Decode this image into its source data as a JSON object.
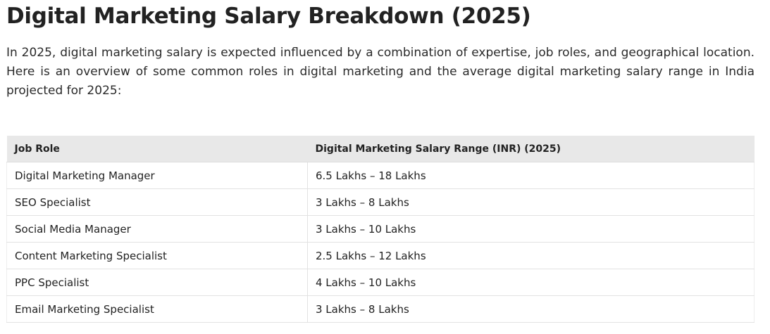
{
  "article": {
    "title": "Digital Marketing Salary Breakdown (2025)",
    "intro": "In 2025, digital marketing salary is expected influenced by a combination of expertise, job roles, and geographical location. Here is an overview of some common roles in digital marketing and the average digital marketing salary range in India projected for 2025:"
  },
  "table": {
    "headers": {
      "role": "Job Role",
      "range": "Digital Marketing Salary Range (INR) (2025)"
    },
    "rows": [
      {
        "role": "Digital Marketing Manager",
        "range": "6.5 Lakhs – 18 Lakhs"
      },
      {
        "role": "SEO Specialist",
        "range": "3 Lakhs – 8 Lakhs"
      },
      {
        "role": "Social Media Manager",
        "range": "3 Lakhs – 10 Lakhs"
      },
      {
        "role": "Content Marketing Specialist",
        "range": "2.5 Lakhs – 12 Lakhs"
      },
      {
        "role": "PPC Specialist",
        "range": "4 Lakhs – 10 Lakhs"
      },
      {
        "role": "Email Marketing Specialist",
        "range": "3 Lakhs – 8 Lakhs"
      }
    ]
  }
}
